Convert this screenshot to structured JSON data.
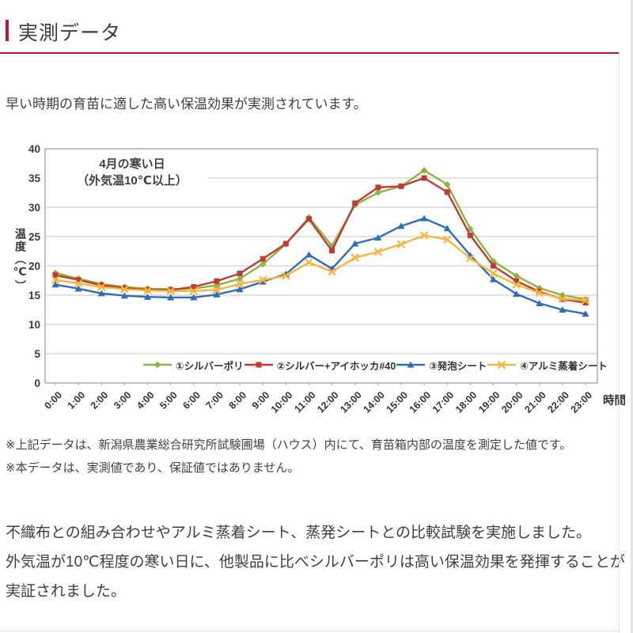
{
  "page": {
    "accent_color": "#c01243",
    "header": {
      "title": "実測データ"
    },
    "intro": "早い時期の育苗に適した高い保温効果が実測されています。",
    "notes": [
      "※上記データは、新潟県農業総合研究所試験圃場（ハウス）内にて、育苗箱内部の温度を測定した値です。",
      "※本データは、実測値であり、保証値ではありません。"
    ],
    "conclusion": [
      "不織布との組み合わせやアルミ蒸着シート、蒸発シートとの比較試験を実施しました。",
      "外気温が10℃程度の寒い日に、他製品に比べシルバーポリは高い保温効果を発揮することが",
      "実証されました。"
    ]
  },
  "chart_data": {
    "type": "line",
    "title": "",
    "annotation": [
      "4月の寒い日",
      "（外気温10℃以上）"
    ],
    "xlabel": "時間",
    "ylabel": "温度（℃）",
    "ylim": [
      0,
      40
    ],
    "yticks": [
      0,
      5,
      10,
      15,
      20,
      25,
      30,
      35,
      40
    ],
    "grid": true,
    "legend_position": "bottom-inside",
    "x": [
      "0:00",
      "1:00",
      "2:00",
      "3:00",
      "4:00",
      "5:00",
      "6:00",
      "7:00",
      "8:00",
      "9:00",
      "10:00",
      "11:00",
      "12:00",
      "13:00",
      "14:00",
      "15:00",
      "16:00",
      "17:00",
      "18:00",
      "19:00",
      "20:00",
      "21:00",
      "22:00",
      "23:00"
    ],
    "series": [
      {
        "name": "①シルバーポリ",
        "color": "#8cb445",
        "marker": "diamond",
        "values": [
          18.8,
          17.8,
          16.9,
          16.4,
          16.1,
          16.0,
          16.1,
          16.7,
          17.8,
          20.3,
          23.7,
          28.3,
          23.4,
          30.4,
          32.5,
          33.6,
          36.3,
          33.9,
          26.3,
          20.8,
          18.3,
          16.2,
          15.0,
          14.3
        ]
      },
      {
        "name": "②シルバー+アイホッカ#40",
        "color": "#bf3b33",
        "marker": "square",
        "values": [
          18.4,
          17.6,
          16.7,
          16.2,
          15.9,
          15.9,
          16.4,
          17.4,
          18.7,
          21.2,
          23.8,
          28.0,
          22.6,
          30.7,
          33.4,
          33.6,
          35.0,
          32.6,
          25.2,
          20.0,
          17.4,
          15.6,
          14.3,
          13.7
        ]
      },
      {
        "name": "③発泡シート",
        "color": "#2c6eb8",
        "marker": "triangle",
        "values": [
          16.8,
          16.1,
          15.3,
          14.9,
          14.7,
          14.6,
          14.6,
          15.1,
          16.0,
          17.3,
          18.6,
          21.9,
          19.5,
          23.8,
          24.8,
          26.8,
          28.1,
          26.4,
          21.8,
          17.7,
          15.2,
          13.6,
          12.5,
          11.8
        ]
      },
      {
        "name": "④アルミ蒸着シート",
        "color": "#f4b63f",
        "marker": "x",
        "values": [
          17.6,
          17.0,
          16.4,
          16.0,
          15.8,
          15.7,
          15.7,
          15.9,
          16.9,
          17.6,
          18.3,
          20.6,
          19.0,
          21.4,
          22.4,
          23.7,
          25.2,
          24.5,
          21.3,
          18.7,
          16.8,
          15.4,
          14.4,
          14.1
        ]
      }
    ]
  }
}
